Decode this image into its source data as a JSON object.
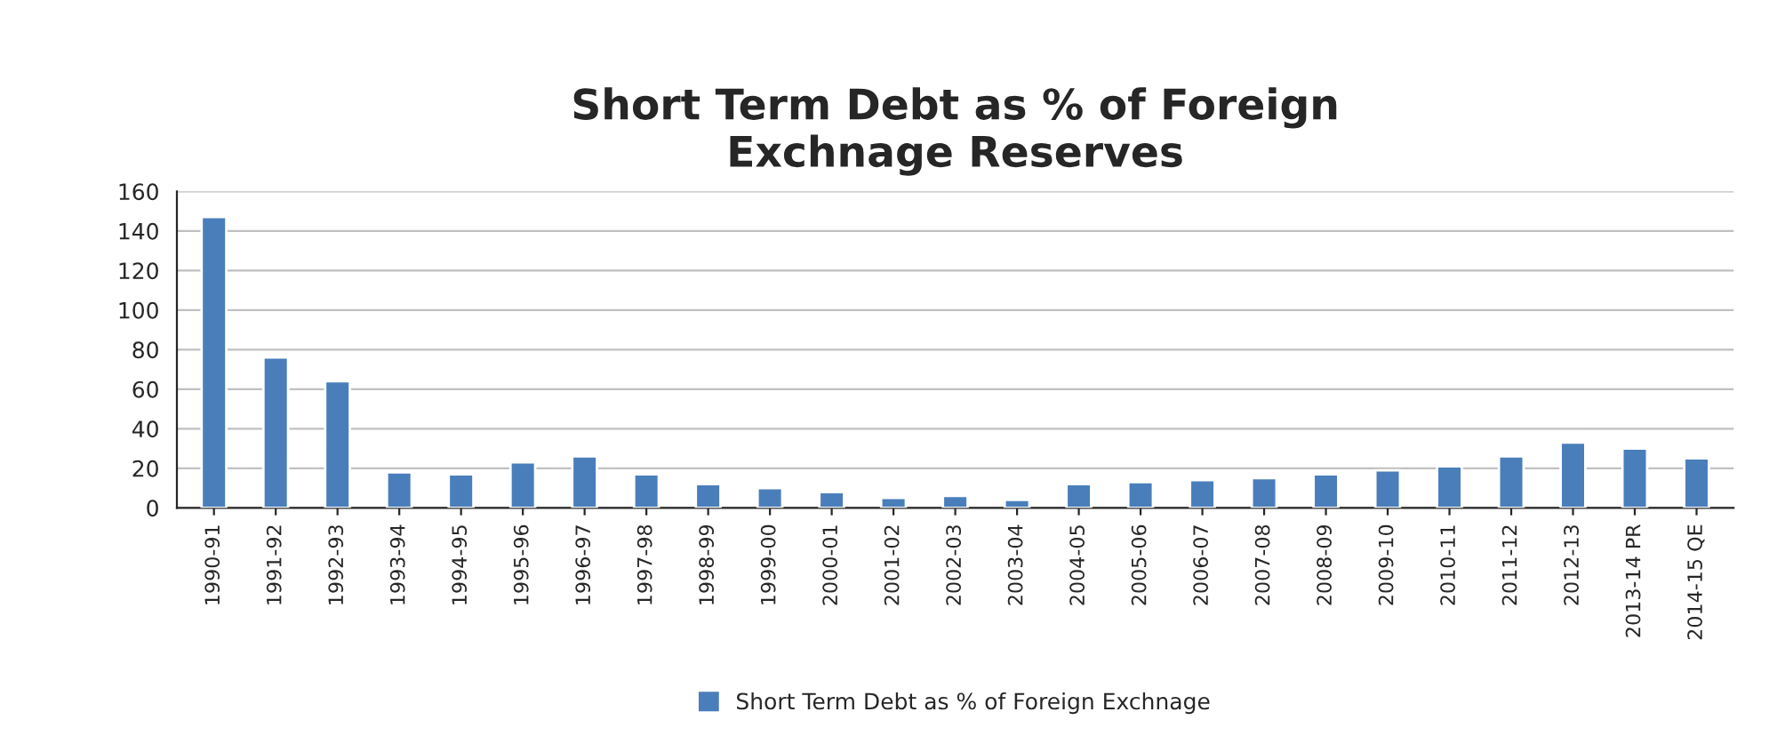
{
  "chart_data": {
    "type": "bar",
    "title": "Short Term Debt as % of Foreign\nExchnage Reserves",
    "categories": [
      "1990-91",
      "1991-92",
      "1992-93",
      "1993-94",
      "1994-95",
      "1995-96",
      "1996-97",
      "1997-98",
      "1998-99",
      "1999-00",
      "2000-01",
      "2001-02",
      "2002-03",
      "2003-04",
      "2004-05",
      "2005-06",
      "2006-07",
      "2007-08",
      "2008-09",
      "2009-10",
      "2010-11",
      "2011-12",
      "2012-13",
      "2013-14 PR",
      "2014-15 QE"
    ],
    "series": [
      {
        "name": "Short Term Debt as % of Foreign Exchnage",
        "color": "#4a7ebb",
        "values": [
          147,
          76,
          64,
          18,
          17,
          23,
          26,
          17,
          12,
          10,
          8,
          5,
          6,
          4,
          12,
          13,
          14,
          15,
          17,
          19,
          21,
          26,
          33,
          30,
          25
        ]
      }
    ],
    "ylim": [
      0,
      160
    ],
    "yticks": [
      0,
      20,
      40,
      60,
      80,
      100,
      120,
      140,
      160
    ],
    "grid": "y",
    "legend": "bottom"
  }
}
